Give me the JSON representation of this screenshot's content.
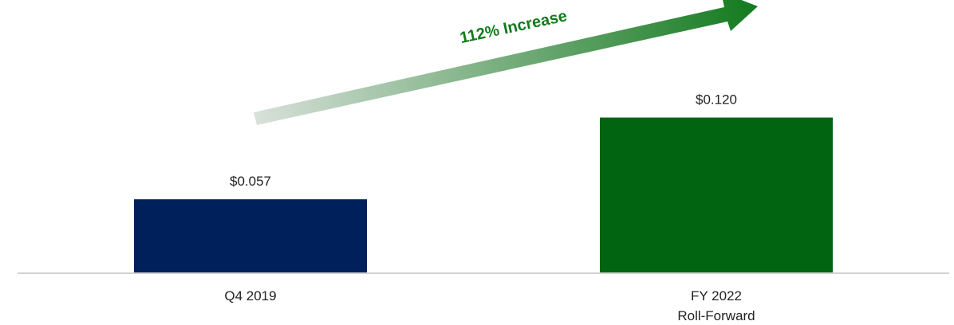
{
  "chart_data": {
    "type": "bar",
    "categories": [
      "Q4 2019",
      "FY 2022\nRoll-Forward"
    ],
    "values": [
      0.057,
      0.12
    ],
    "data_labels": [
      "$0.057",
      "$0.120"
    ],
    "bar_colors": [
      "#00205B",
      "#006411"
    ],
    "ylim": [
      0,
      0.14
    ],
    "grid": false,
    "legend": "none",
    "annotation": {
      "text": "112% Increase",
      "color": "#137A1E",
      "arrow_color_start": "#D8E0DA",
      "arrow_color_end": "#137A1E"
    }
  }
}
